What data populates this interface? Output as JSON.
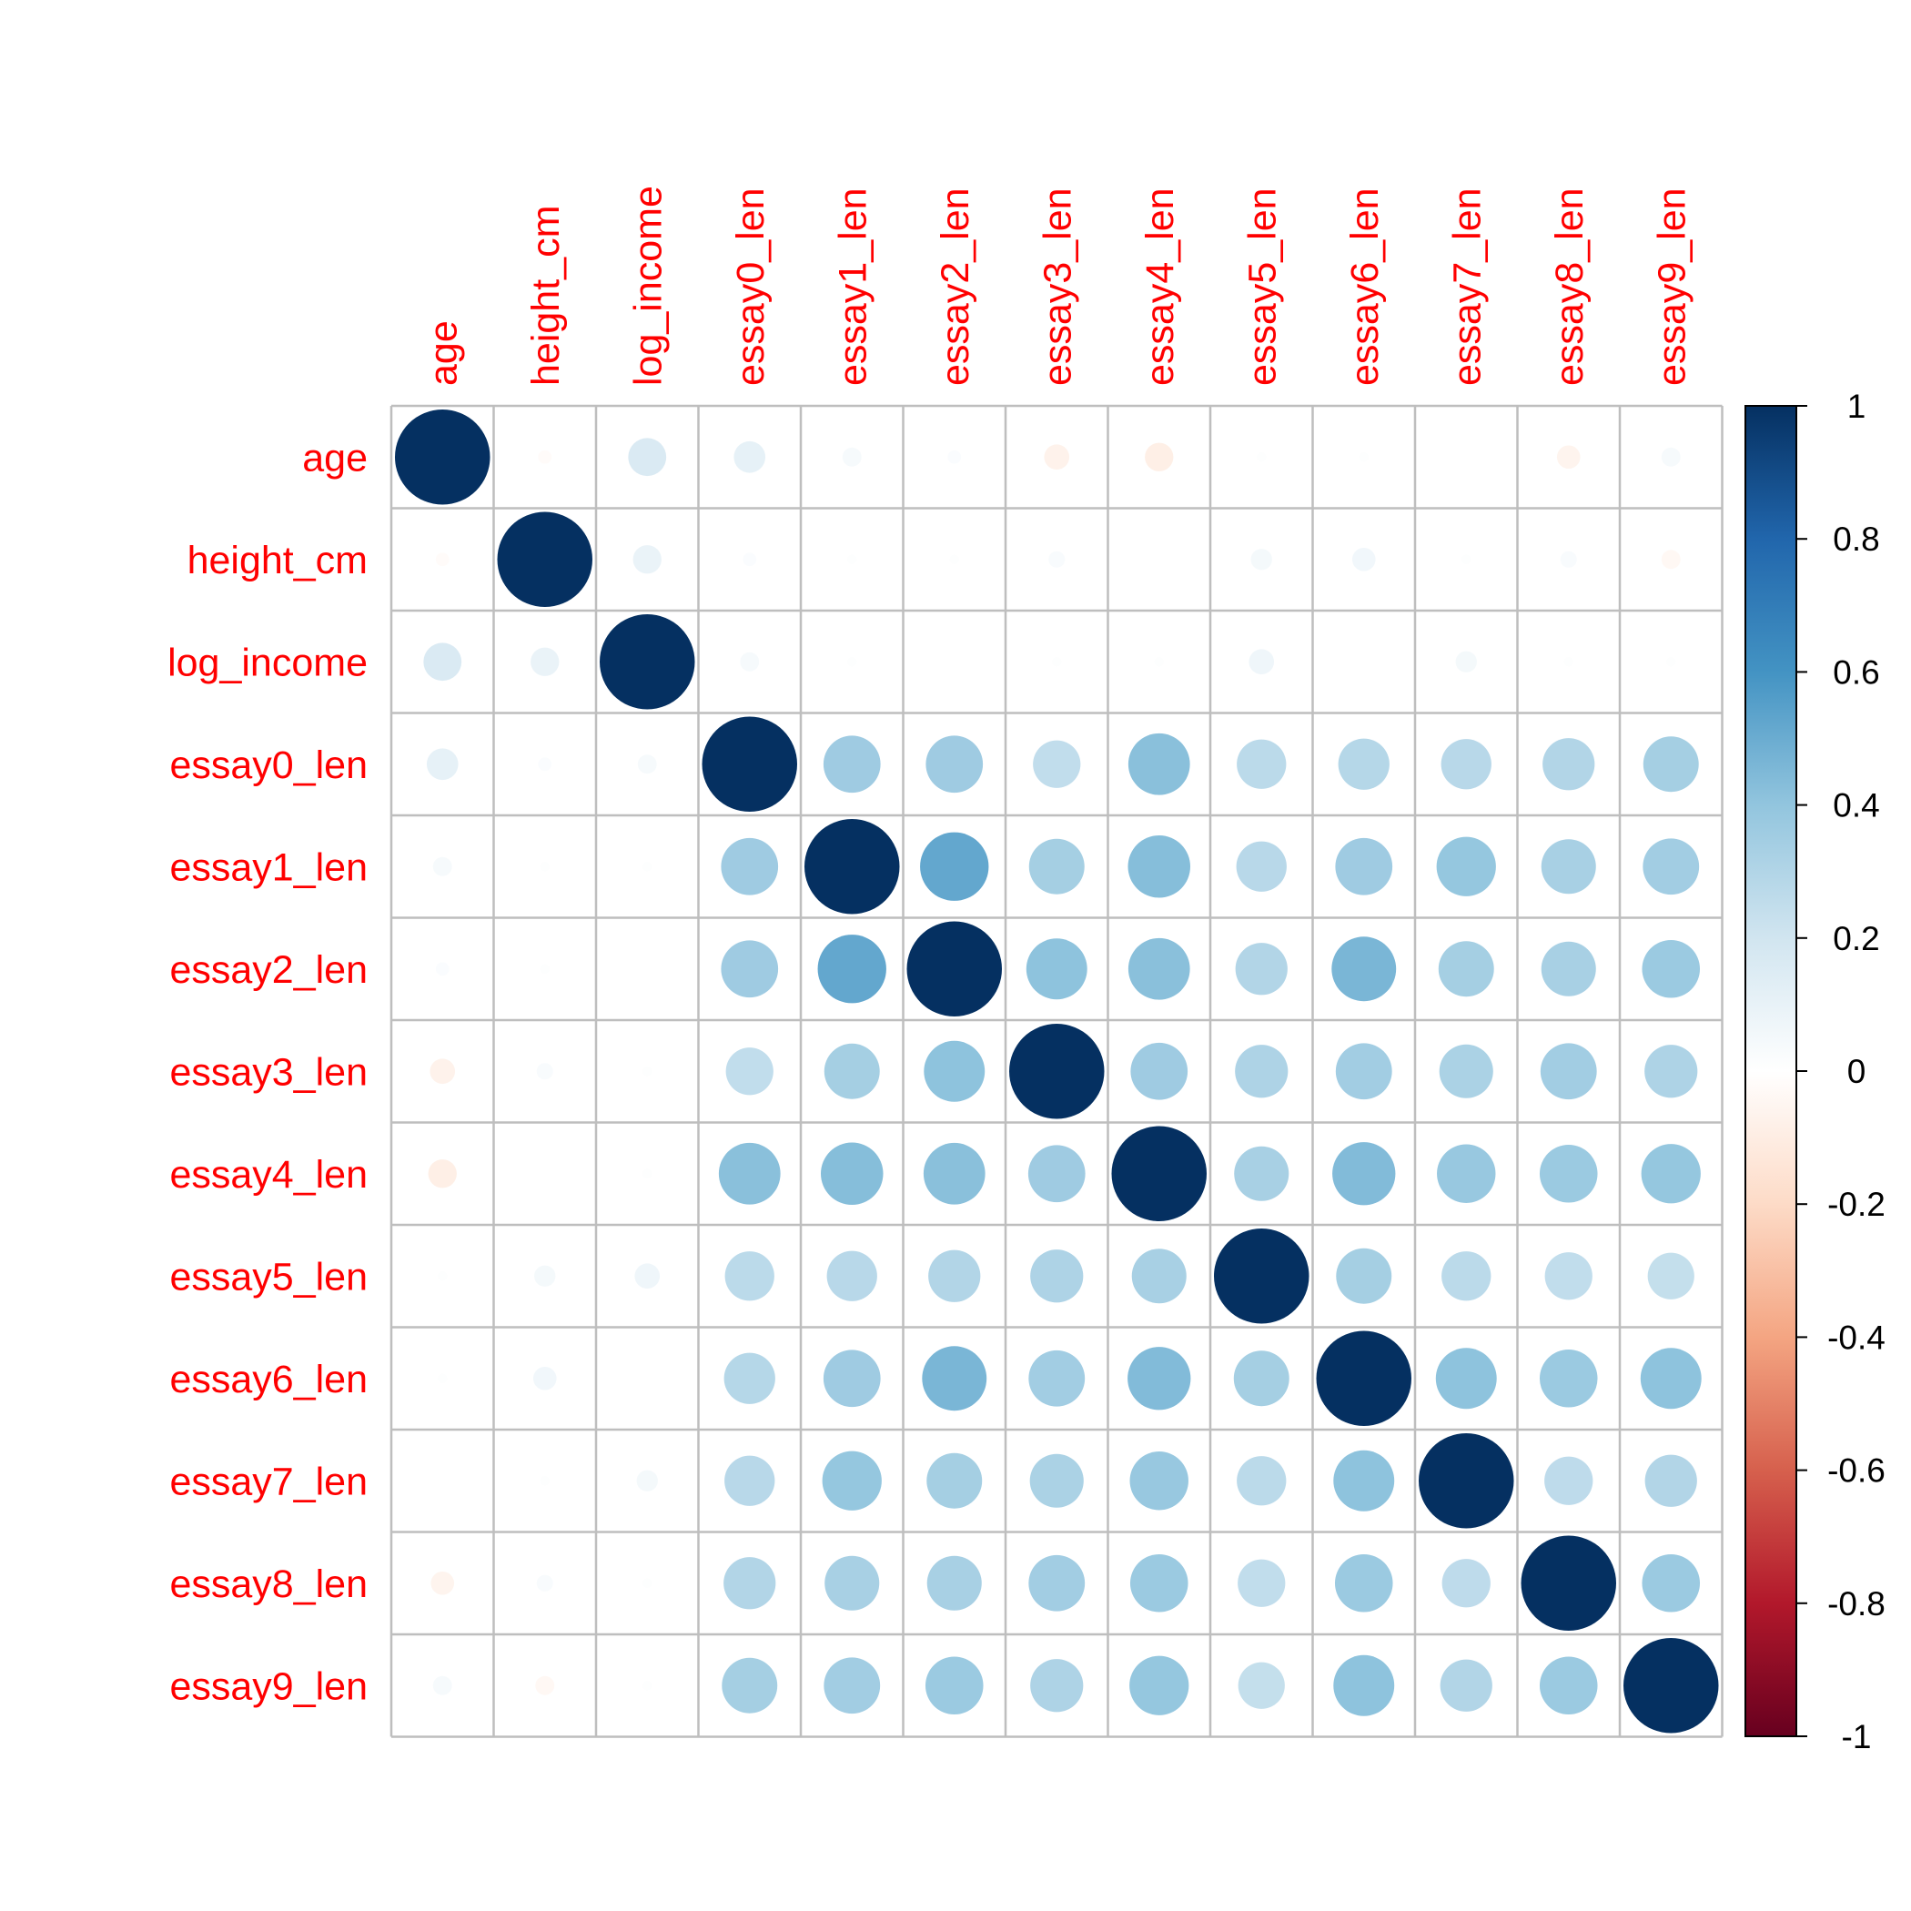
{
  "chart_data": {
    "type": "heatmap",
    "subtype": "correlation-circle",
    "variables": [
      "age",
      "height_cm",
      "log_income",
      "essay0_len",
      "essay1_len",
      "essay2_len",
      "essay3_len",
      "essay4_len",
      "essay5_len",
      "essay6_len",
      "essay7_len",
      "essay8_len",
      "essay9_len"
    ],
    "matrix": [
      [
        1.0,
        -0.02,
        0.16,
        0.11,
        0.04,
        0.02,
        -0.07,
        -0.09,
        0.01,
        0.01,
        0.0,
        -0.06,
        0.04
      ],
      [
        -0.02,
        1.0,
        0.09,
        0.02,
        0.01,
        0.01,
        0.03,
        0.0,
        0.05,
        0.06,
        0.01,
        0.03,
        -0.04
      ],
      [
        0.16,
        0.09,
        1.0,
        0.04,
        0.01,
        0.0,
        0.01,
        0.01,
        0.07,
        0.0,
        0.05,
        0.01,
        0.01
      ],
      [
        0.11,
        0.02,
        0.04,
        1.0,
        0.36,
        0.36,
        0.25,
        0.42,
        0.27,
        0.29,
        0.28,
        0.3,
        0.34
      ],
      [
        0.04,
        0.01,
        0.01,
        0.36,
        1.0,
        0.52,
        0.34,
        0.43,
        0.28,
        0.36,
        0.39,
        0.33,
        0.35
      ],
      [
        0.02,
        0.01,
        0.0,
        0.36,
        0.52,
        1.0,
        0.41,
        0.42,
        0.3,
        0.46,
        0.34,
        0.33,
        0.37
      ],
      [
        -0.07,
        0.03,
        0.01,
        0.25,
        0.34,
        0.41,
        1.0,
        0.36,
        0.31,
        0.35,
        0.32,
        0.35,
        0.31
      ],
      [
        -0.09,
        0.0,
        0.01,
        0.42,
        0.43,
        0.42,
        0.36,
        1.0,
        0.33,
        0.44,
        0.38,
        0.37,
        0.39
      ],
      [
        0.01,
        0.05,
        0.07,
        0.27,
        0.28,
        0.3,
        0.31,
        0.33,
        1.0,
        0.34,
        0.27,
        0.25,
        0.24
      ],
      [
        0.01,
        0.06,
        0.0,
        0.29,
        0.36,
        0.46,
        0.35,
        0.44,
        0.34,
        1.0,
        0.41,
        0.37,
        0.41
      ],
      [
        0.0,
        0.01,
        0.05,
        0.28,
        0.39,
        0.34,
        0.32,
        0.38,
        0.27,
        0.41,
        1.0,
        0.26,
        0.3
      ],
      [
        -0.06,
        0.03,
        0.01,
        0.3,
        0.33,
        0.33,
        0.35,
        0.37,
        0.25,
        0.37,
        0.26,
        1.0,
        0.37
      ],
      [
        0.04,
        -0.04,
        0.01,
        0.34,
        0.35,
        0.37,
        0.31,
        0.39,
        0.24,
        0.41,
        0.3,
        0.37,
        1.0
      ]
    ],
    "color_scale": {
      "range": [
        -1,
        1
      ],
      "tick_labels": [
        "1",
        "0.8",
        "0.6",
        "0.4",
        "0.2",
        "0",
        "-0.2",
        "-0.4",
        "-0.6",
        "-0.8",
        "-1"
      ],
      "stops": [
        "#67001F",
        "#B2182B",
        "#D6604D",
        "#F4A582",
        "#FDDBC7",
        "#FFFFFF",
        "#D1E5F0",
        "#92C5DE",
        "#4393C3",
        "#2166AC",
        "#053061"
      ]
    },
    "label_color": "#FF0000",
    "grid": true,
    "legend": "right"
  }
}
